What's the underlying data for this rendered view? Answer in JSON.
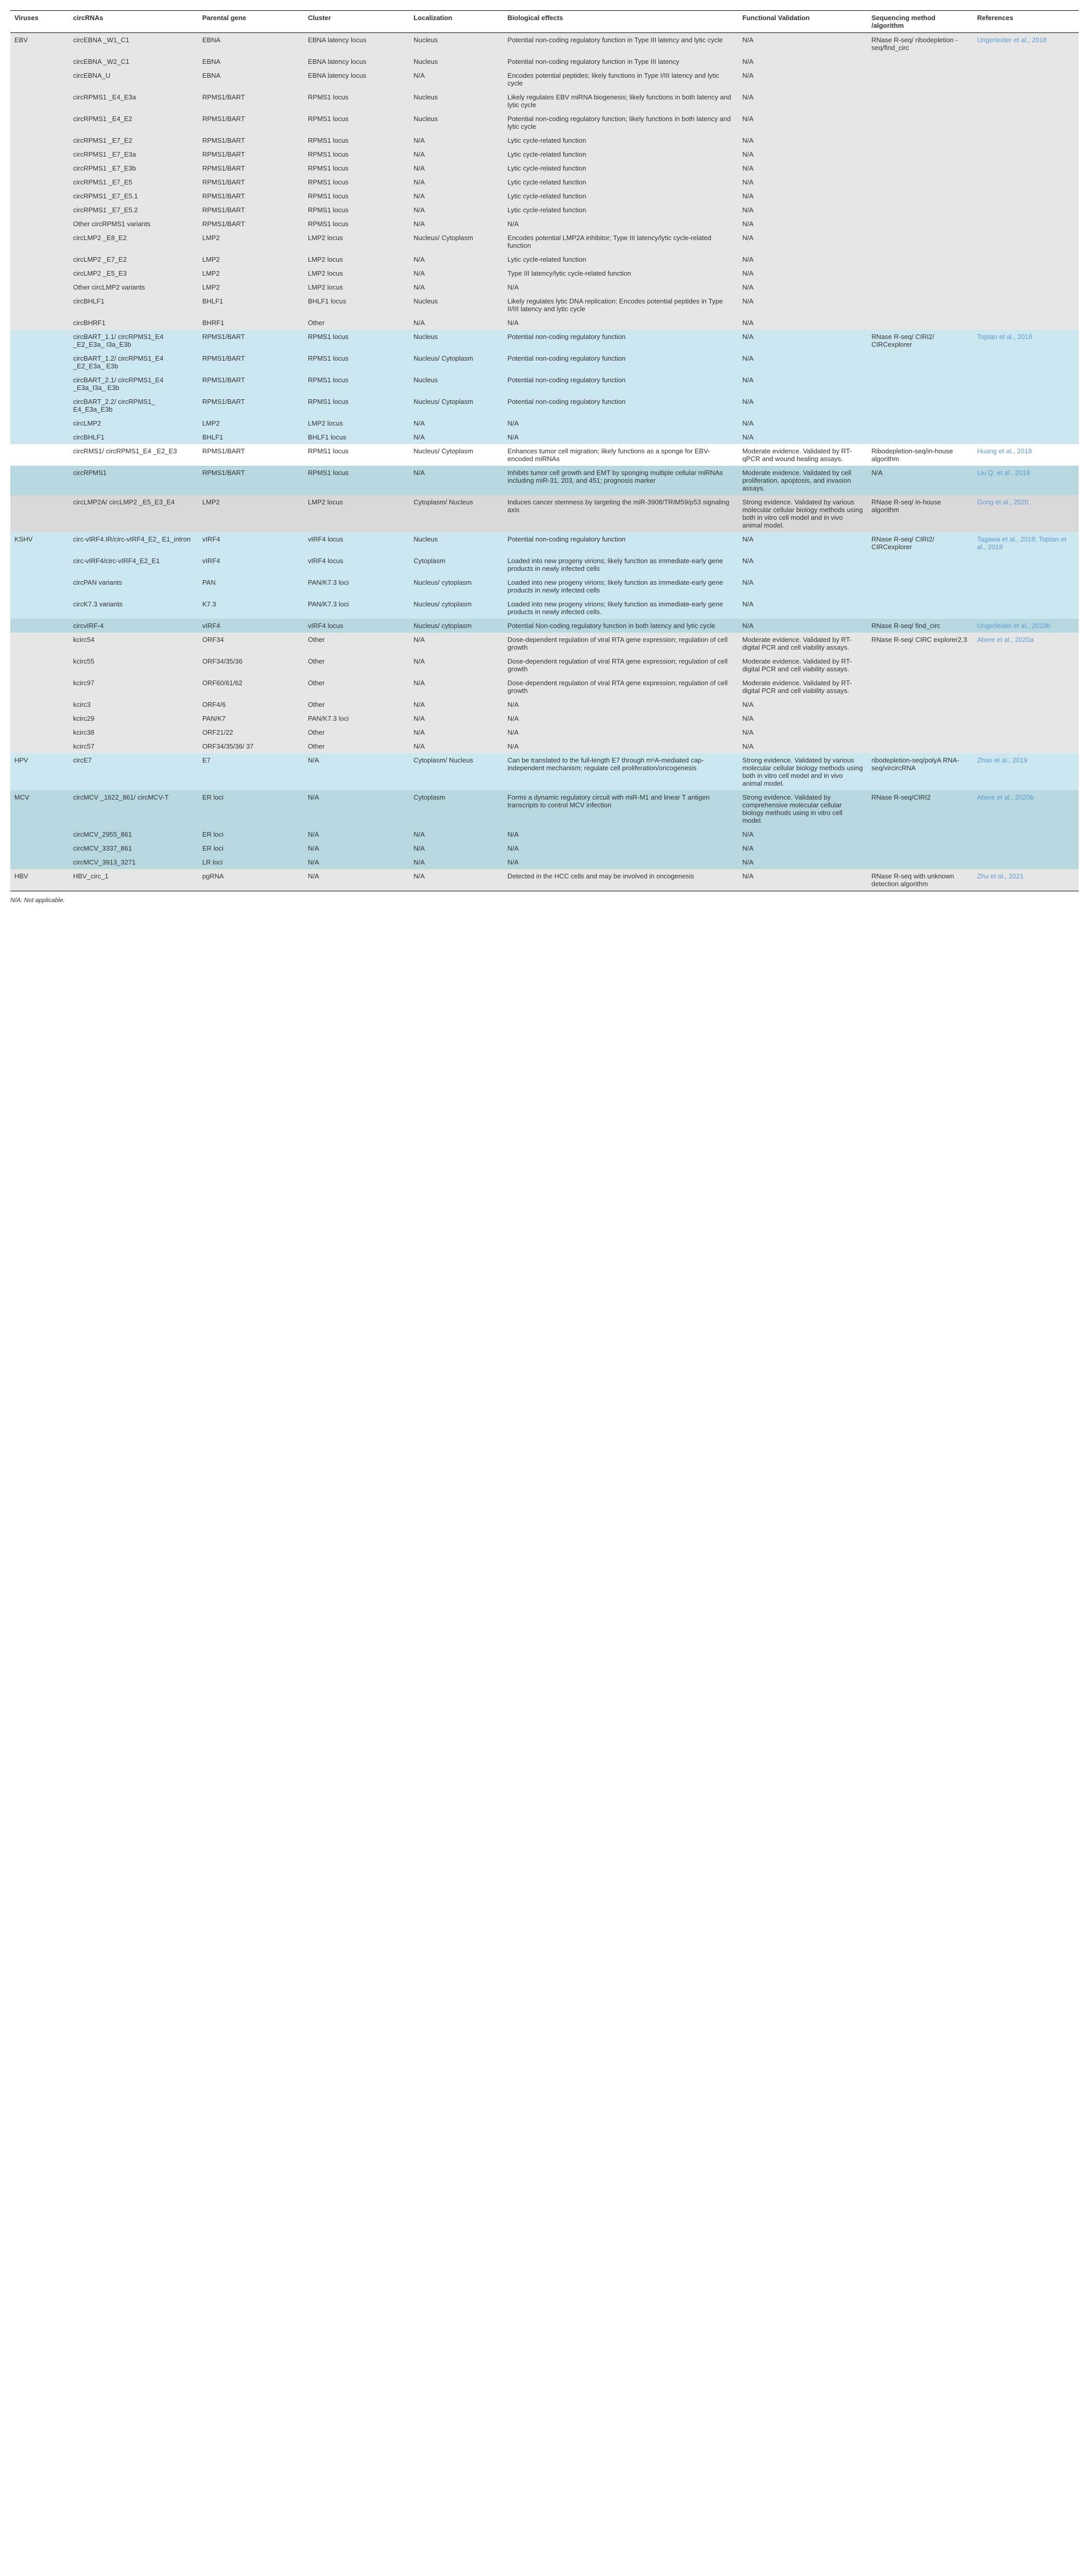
{
  "headers": [
    "Viruses",
    "circRNAs",
    "Parental gene",
    "Cluster",
    "Localization",
    "Biological effects",
    "Functional Validation",
    "Sequencing method /algorithm",
    "References"
  ],
  "footnote": "N/A: Not applicable.",
  "colorGroups": {
    "group1": "#e6e6e6",
    "group2": "#cce7f0",
    "group3": "#ffffff",
    "group4": "#b8d8e0",
    "group5": "#d9d9d9",
    "group6": "#cce7f0",
    "group7": "#b8d8e0",
    "group8": "#e6e6e6",
    "group9": "#cce7f0",
    "group10": "#b8d8e0",
    "group11": "#e6e6e6"
  },
  "rows": [
    {
      "bg": "group1",
      "virus": "EBV",
      "c": "circEBNA _W1_C1",
      "p": "EBNA",
      "cl": "EBNA latency locus",
      "loc": "Nucleus",
      "bio": "Potential non-coding regulatory function in Type III latency and lytic cycle",
      "fv": "N/A",
      "seq": "RNase R-seq/ ribodepletion -seq/find_circ",
      "ref": "Ungerleider et al., 2018"
    },
    {
      "bg": "group1",
      "c": "circEBNA _W2_C1",
      "p": "EBNA",
      "cl": "EBNA latency locus",
      "loc": "Nucleus",
      "bio": "Potential non-coding regulatory function in Type III latency",
      "fv": "N/A"
    },
    {
      "bg": "group1",
      "c": "circEBNA_U",
      "p": "EBNA",
      "cl": "EBNA latency locus",
      "loc": "N/A",
      "bio": "Encodes potential peptides; likely functions in Type I/III latency and lytic cycle",
      "fv": "N/A"
    },
    {
      "bg": "group1",
      "c": "circRPMS1 _E4_E3a",
      "p": "RPMS1/BART",
      "cl": "RPMS1 locus",
      "loc": "Nucleus",
      "bio": "Likely regulates EBV miRNA biogenesis; likely functions in both latency and lytic cycle",
      "fv": "N/A"
    },
    {
      "bg": "group1",
      "c": "circRPMS1 _E4_E2",
      "p": "RPMS1/BART",
      "cl": "RPMS1 locus",
      "loc": "Nucleus",
      "bio": "Potential non-coding regulatory function; likely functions in both latency and lytic cycle",
      "fv": "N/A"
    },
    {
      "bg": "group1",
      "c": "circRPMS1 _E7_E2",
      "p": "RPMS1/BART",
      "cl": "RPMS1 locus",
      "loc": "N/A",
      "bio": "Lytic cycle-related function",
      "fv": "N/A"
    },
    {
      "bg": "group1",
      "c": "circRPMS1 _E7_E3a",
      "p": "RPMS1/BART",
      "cl": "RPMS1 locus",
      "loc": "N/A",
      "bio": "Lytic cycle-related function",
      "fv": "N/A"
    },
    {
      "bg": "group1",
      "c": "circRPMS1 _E7_E3b",
      "p": "RPMS1/BART",
      "cl": "RPMS1 locus",
      "loc": "N/A",
      "bio": "Lytic cycle-related function",
      "fv": "N/A"
    },
    {
      "bg": "group1",
      "c": "circRPMS1 _E7_E5",
      "p": "RPMS1/BART",
      "cl": "RPMS1 locus",
      "loc": "N/A",
      "bio": "Lytic cycle-related function",
      "fv": "N/A"
    },
    {
      "bg": "group1",
      "c": "circRPMS1 _E7_E5.1",
      "p": "RPMS1/BART",
      "cl": "RPMS1 locus",
      "loc": "N/A",
      "bio": "Lytic cycle-related function",
      "fv": "N/A"
    },
    {
      "bg": "group1",
      "c": "circRPMS1 _E7_E5.2",
      "p": "RPMS1/BART",
      "cl": "RPMS1 locus",
      "loc": "N/A",
      "bio": "Lytic cycle-related function",
      "fv": "N/A"
    },
    {
      "bg": "group1",
      "c": "Other circRPMS1 variants",
      "p": "RPMS1/BART",
      "cl": "RPMS1 locus",
      "loc": "N/A",
      "bio": "N/A",
      "fv": "N/A"
    },
    {
      "bg": "group1",
      "c": "circLMP2 _E8_E2",
      "p": "LMP2",
      "cl": "LMP2 locus",
      "loc": "Nucleus/ Cytoplasm",
      "bio": "Encodes potential LMP2A inhibitor; Type III latency/lytic cycle-related function",
      "fv": "N/A"
    },
    {
      "bg": "group1",
      "c": "circLMP2 _E7_E2",
      "p": "LMP2",
      "cl": "LMP2 locus",
      "loc": "N/A",
      "bio": "Lytic cycle-related function",
      "fv": "N/A"
    },
    {
      "bg": "group1",
      "c": "circLMP2 _E5_E3",
      "p": "LMP2",
      "cl": "LMP2 locus",
      "loc": "N/A",
      "bio": "Type III latency/lytic cycle-related function",
      "fv": "N/A"
    },
    {
      "bg": "group1",
      "c": "Other circLMP2 variants",
      "p": "LMP2",
      "cl": "LMP2 locus",
      "loc": "N/A",
      "bio": "N/A",
      "fv": "N/A"
    },
    {
      "bg": "group1",
      "c": "circBHLF1",
      "p": "BHLF1",
      "cl": "BHLF1 locus",
      "loc": "Nucleus",
      "bio": "Likely regulates lytic DNA replication; Encodes potential peptides in Type II/III latency and lytic cycle",
      "fv": "N/A"
    },
    {
      "bg": "group1",
      "c": "circBHRF1",
      "p": "BHRF1",
      "cl": "Other",
      "loc": "N/A",
      "bio": "N/A",
      "fv": "N/A"
    },
    {
      "bg": "group2",
      "c": "circBART_1.1/ circRPMS1_E4 _E2_E3a_ I3a_E3b",
      "p": "RPMS1/BART",
      "cl": "RPMS1 locus",
      "loc": "Nucleus",
      "bio": "Potential non-coding regulatory function",
      "fv": "N/A",
      "seq": "RNase R-seq/ CIRI2/ CIRCexplorer",
      "ref": "Toptan et al., 2018"
    },
    {
      "bg": "group2",
      "c": "circBART_1.2/ circRPMS1_E4 _E2_E3a_ E3b",
      "p": "RPMS1/BART",
      "cl": "RPMS1 locus",
      "loc": "Nucleus/ Cytoplasm",
      "bio": "Potential non-coding regulatory function",
      "fv": "N/A"
    },
    {
      "bg": "group2",
      "c": "circBART_2.1/ circRPMS1_E4 _E3a_I3a_ E3b",
      "p": "RPMS1/BART",
      "cl": "RPMS1 locus",
      "loc": "Nucleus",
      "bio": "Potential non-coding regulatory function",
      "fv": "N/A"
    },
    {
      "bg": "group2",
      "c": "circBART_2.2/ circRPMS1_ E4_E3a_E3b",
      "p": "RPMS1/BART",
      "cl": "RPMS1 locus",
      "loc": "Nucleus/ Cytoplasm",
      "bio": "Potential non-coding regulatory function",
      "fv": "N/A"
    },
    {
      "bg": "group2",
      "c": "circLMP2",
      "p": "LMP2",
      "cl": "LMP2 locus",
      "loc": "N/A",
      "bio": "N/A",
      "fv": "N/A"
    },
    {
      "bg": "group2",
      "c": "circBHLF1",
      "p": "BHLF1",
      "cl": "BHLF1 locus",
      "loc": "N/A",
      "bio": "N/A",
      "fv": "N/A"
    },
    {
      "bg": "group3",
      "c": "circRMS1/ circRPMS1_E4 _E2_E3",
      "p": "RPMS1/BART",
      "cl": "RPMS1 locus",
      "loc": "Nucleus/ Cytoplasm",
      "bio": "Enhances tumor cell migration; likely functions as a sponge for EBV-encoded miRNAs",
      "fv": "Moderate evidence. Validated by RT-qPCR and wound healing assays.",
      "seq": "Ribodepletion-seq/in-house algorithm",
      "ref": "Huang et al., 2019"
    },
    {
      "bg": "group4",
      "c": "circRPMS1",
      "p": "RPMS1/BART",
      "cl": "RPMS1 locus",
      "loc": "N/A",
      "bio": "Inhibits tumor cell growth and EMT by sponging multiple cellular miRNAs including miR-31, 203, and 451; prognosis marker",
      "fv": "Moderate evidence. Validated by cell proliferation, apoptosis, and invasion assays.",
      "seq": "N/A",
      "ref": "Liu Q. et al., 2019"
    },
    {
      "bg": "group5",
      "c": "circLMP2A/ circLMP2 _E5_E3_E4",
      "p": "LMP2",
      "cl": "LMP2 locus",
      "loc": "Cytoplasm/ Nucleus",
      "bio": "Induces cancer stemness by targeting the miR-3908/TRIM59/p53 signaling axis",
      "fv": "Strong evidence. Validated by various molecular cellular biology methods using both in vitro cell model and in vivo animal model.",
      "seq": "RNase R-seq/ in-house algorithm",
      "ref": "Gong et al., 2020"
    },
    {
      "bg": "group6",
      "virus": "KSHV",
      "c": "circ-vIRF4.IR/circ-vIRF4_E2_ E1_intron",
      "p": "vIRF4",
      "cl": "vIRF4 locus",
      "loc": "Nucleus",
      "bio": "Potential non-coding regulatory function",
      "fv": "N/A",
      "seq": "RNase R-seq/ CIRI2/ CIRCexplorer",
      "ref": "Tagawa et al., 2018; Toptan et al., 2018"
    },
    {
      "bg": "group6",
      "c": "circ-vIRF4/circ-vIRF4_E2_E1",
      "p": "vIRF4",
      "cl": "vIRF4 locus",
      "loc": "Cytoplasm",
      "bio": "Loaded into new progeny virions; likely function as immediate-early gene products in newly infected cells",
      "fv": "N/A"
    },
    {
      "bg": "group6",
      "c": "circPAN variants",
      "p": "PAN",
      "cl": "PAN/K7.3 loci",
      "loc": "Nucleus/ cytoplasm",
      "bio": "Loaded into new progeny virions; likely function as immediate-early gene products in newly infected cells",
      "fv": "N/A"
    },
    {
      "bg": "group6",
      "c": "circK7.3 variants",
      "p": "K7.3",
      "cl": "PAN/K7.3 loci",
      "loc": "Nucleus/ cytoplasm",
      "bio": "Loaded into new progeny virions; likely function as immediate-early gene products in newly infected cells.",
      "fv": "N/A"
    },
    {
      "bg": "group7",
      "c": "circvIRF-4",
      "p": "vIRF4",
      "cl": "vIRF4 locus",
      "loc": "Nucleus/ cytoplasm",
      "bio": "Potential Non-coding regulatory function in both latency and lytic cycle",
      "fv": "N/A",
      "seq": "RNase R-seq/ find_circ",
      "ref": "Ungerleider et al., 2019b"
    },
    {
      "bg": "group8",
      "c": "kcirc54",
      "p": "ORF34",
      "cl": "Other",
      "loc": "N/A",
      "bio": "Dose-dependent regulation of viral RTA gene expression; regulation of cell growth",
      "fv": "Moderate evidence. Validated by RT-digital PCR and cell viability assays.",
      "seq": "RNase R-seq/ CIRC explorer2.3",
      "ref": "Abere et al., 2020a"
    },
    {
      "bg": "group8",
      "c": "kcirc55",
      "p": "ORF34/35/36",
      "cl": "Other",
      "loc": "N/A",
      "bio": "Dose-dependent regulation of viral RTA gene expression; regulation of cell growth",
      "fv": "Moderate evidence. Validated by RT-digital PCR and cell viability assays."
    },
    {
      "bg": "group8",
      "c": "kcirc97",
      "p": "ORF60/61/62",
      "cl": "Other",
      "loc": "N/A",
      "bio": "Dose-dependent regulation of viral RTA gene expression; regulation of cell growth",
      "fv": "Moderate evidence. Validated by RT-digital PCR and cell viability assays."
    },
    {
      "bg": "group8",
      "c": "kcirc3",
      "p": "ORF4/6",
      "cl": "Other",
      "loc": "N/A",
      "bio": "N/A",
      "fv": "N/A"
    },
    {
      "bg": "group8",
      "c": "kcirc29",
      "p": "PAN/K7",
      "cl": "PAN/K7.3 loci",
      "loc": "N/A",
      "bio": "N/A",
      "fv": "N/A"
    },
    {
      "bg": "group8",
      "c": "kcirc38",
      "p": "ORF21/22",
      "cl": "Other",
      "loc": "N/A",
      "bio": "N/A",
      "fv": "N/A"
    },
    {
      "bg": "group8",
      "c": "kcirc57",
      "p": "ORF34/35/36/ 37",
      "cl": "Other",
      "loc": "N/A",
      "bio": "N/A",
      "fv": "N/A"
    },
    {
      "bg": "group9",
      "virus": "HPV",
      "c": "circE7",
      "p": "E7",
      "cl": "N/A",
      "loc": "Cytoplasm/ Nucleus",
      "bio": "Can be translated to the full-length E7 through m⁶A-mediated cap-independent mechanism; regulate cell proliferation/oncogenesis",
      "fv": "Strong evidence. Validated by various molecular cellular biology methods using both in vitro cell model and in vivo animal model.",
      "seq": "ribodepletion-seq/polyA RNA-seq/vircircRNA",
      "ref": "Zhao et al., 2019"
    },
    {
      "bg": "group10",
      "virus": "MCV",
      "c": "circMCV _1622_861/ circMCV-T",
      "p": "ER loci",
      "cl": "N/A",
      "loc": "Cytoplasm",
      "bio": "Forms a dynamic regulatory circuit with miR-M1 and linear T antigen transcripts to control MCV infection",
      "fv": "Strong evidence. Validated by comprehensive molecular cellular biology methods using in vitro cell model.",
      "seq": "RNase R-seq/CIRI2",
      "ref": "Abere et al., 2020b"
    },
    {
      "bg": "group10",
      "c": "circMCV_2955_861",
      "p": "ER loci",
      "cl": "N/A",
      "loc": "N/A",
      "bio": "N/A",
      "fv": "N/A"
    },
    {
      "bg": "group10",
      "c": "circMCV_3337_861",
      "p": "ER loci",
      "cl": "N/A",
      "loc": "N/A",
      "bio": "N/A",
      "fv": "N/A"
    },
    {
      "bg": "group10",
      "c": "circMCV_3913_3271",
      "p": "LR loci",
      "cl": "N/A",
      "loc": "N/A",
      "bio": "N/A",
      "fv": "N/A"
    },
    {
      "bg": "group11",
      "virus": "HBV",
      "c": "HBV_circ_1",
      "p": "pgRNA",
      "cl": "N/A",
      "loc": "N/A",
      "bio": "Detected in the HCC cells and may be involved in oncogenesis",
      "fv": "N/A",
      "seq": "RNase R-seq with unknown detection algorithm",
      "ref": "Zhu et al., 2021"
    }
  ]
}
